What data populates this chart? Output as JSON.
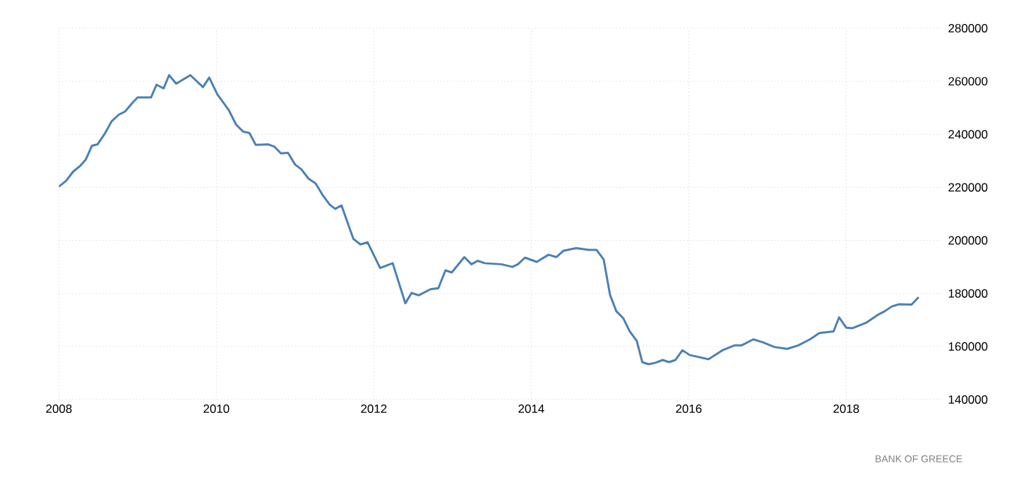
{
  "chart_data": {
    "type": "line",
    "annotations": [
      "BANK OF GREECE"
    ],
    "xlim": [
      2008,
      2019.23
    ],
    "xticks": [
      2008,
      2010,
      2012,
      2014,
      2016,
      2018
    ],
    "ylim": [
      140000,
      280000
    ],
    "yticks": [
      140000,
      160000,
      180000,
      200000,
      220000,
      240000,
      260000,
      280000
    ],
    "grid": true,
    "marker": "none",
    "line_style": "solid",
    "series": [
      {
        "color": "#4a80b5",
        "x": [
          2008.0,
          2008.09,
          2008.18,
          2008.27,
          2008.34,
          2008.42,
          2008.49,
          2008.58,
          2008.67,
          2008.76,
          2008.84,
          2008.93,
          2009.0,
          2009.17,
          2009.24,
          2009.33,
          2009.4,
          2009.49,
          2009.67,
          2009.83,
          2009.91,
          2010.01,
          2010.16,
          2010.25,
          2010.34,
          2010.42,
          2010.5,
          2010.66,
          2010.74,
          2010.82,
          2010.91,
          2011.0,
          2011.08,
          2011.17,
          2011.26,
          2011.35,
          2011.44,
          2011.51,
          2011.59,
          2011.66,
          2011.74,
          2011.83,
          2011.92,
          2012.08,
          2012.24,
          2012.4,
          2012.48,
          2012.57,
          2012.72,
          2012.82,
          2012.91,
          2012.99,
          2013.15,
          2013.24,
          2013.32,
          2013.41,
          2013.62,
          2013.76,
          2013.83,
          2013.92,
          2014.07,
          2014.22,
          2014.32,
          2014.41,
          2014.57,
          2014.73,
          2014.83,
          2014.92,
          2015.0,
          2015.08,
          2015.17,
          2015.25,
          2015.34,
          2015.41,
          2015.49,
          2015.57,
          2015.67,
          2015.75,
          2015.83,
          2015.92,
          2016.01,
          2016.25,
          2016.43,
          2016.58,
          2016.67,
          2016.82,
          2016.94,
          2017.09,
          2017.25,
          2017.39,
          2017.54,
          2017.66,
          2017.84,
          2017.91,
          2018.0,
          2018.08,
          2018.25,
          2018.4,
          2018.49,
          2018.58,
          2018.67,
          2018.83,
          2018.92
        ],
        "values": [
          220300,
          222400,
          225900,
          228100,
          230400,
          235700,
          236200,
          240100,
          244900,
          247400,
          248600,
          251700,
          253900,
          253900,
          258700,
          257300,
          262300,
          259100,
          262300,
          257800,
          261400,
          255200,
          249000,
          243700,
          241000,
          240500,
          236000,
          236200,
          235300,
          232800,
          233000,
          228600,
          226800,
          223300,
          221500,
          217100,
          213500,
          211900,
          213200,
          207300,
          200600,
          198500,
          199300,
          189600,
          191400,
          176300,
          180200,
          179300,
          181600,
          182000,
          188700,
          187900,
          193700,
          191000,
          192300,
          191400,
          191000,
          190000,
          191000,
          193500,
          191900,
          194600,
          193700,
          196100,
          197100,
          196400,
          196400,
          192800,
          179500,
          173300,
          170600,
          165700,
          162100,
          154100,
          153300,
          153800,
          154900,
          154100,
          154900,
          158600,
          156800,
          155200,
          158600,
          160400,
          160400,
          162700,
          161600,
          159800,
          159100,
          160400,
          162700,
          165100,
          165700,
          171000,
          167100,
          166900,
          168900,
          171900,
          173300,
          175100,
          175900,
          175800,
          178600
        ]
      }
    ]
  }
}
